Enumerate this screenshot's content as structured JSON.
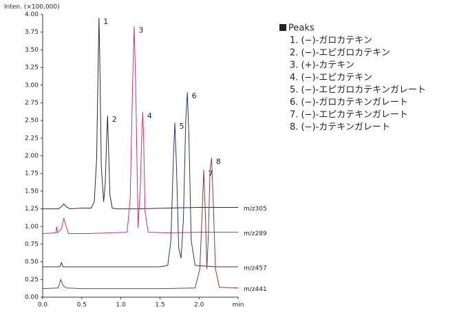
{
  "chart_data": {
    "type": "line",
    "y_label": "Inten. (×100,000)",
    "xlim": [
      0,
      2.5
    ],
    "ylim": [
      0,
      4
    ],
    "xticks": [
      {
        "value": 0,
        "label": "0.0"
      },
      0.5,
      {
        "value": 1,
        "label": "1.0"
      },
      1.5,
      {
        "value": 2,
        "label": "2.0"
      },
      {
        "value": 2.5,
        "label": "min"
      }
    ],
    "yticks": [
      {
        "value": 0,
        "label": "0.00"
      },
      0.25,
      {
        "value": 0.5,
        "label": "0.50"
      },
      0.75,
      {
        "value": 1,
        "label": "1.00"
      },
      1.25,
      {
        "value": 1.5,
        "label": "1.50"
      },
      1.75,
      {
        "value": 2,
        "label": "2.00"
      },
      2.25,
      {
        "value": 2.5,
        "label": "2.50"
      },
      2.75,
      {
        "value": 3,
        "label": "3.00"
      },
      3.25,
      {
        "value": 3.5,
        "label": "3.50"
      },
      3.75,
      {
        "value": 4,
        "label": "4.00"
      }
    ],
    "series": [
      {
        "name": "m/z305",
        "color": "#2b2b2b",
        "peak_labels": [
          "1",
          "2"
        ],
        "x": [
          0,
          0.2,
          0.24,
          0.27,
          0.3,
          0.35,
          0.5,
          0.62,
          0.66,
          0.69,
          0.71,
          0.72,
          0.73,
          0.75,
          0.78,
          0.8,
          0.82,
          0.83,
          0.84,
          0.86,
          0.89,
          0.95,
          1.2,
          1.6,
          2.0,
          2.5
        ],
        "values": [
          1.25,
          1.25,
          1.28,
          1.32,
          1.28,
          1.25,
          1.26,
          1.26,
          1.35,
          1.95,
          3.3,
          3.95,
          3.4,
          1.85,
          1.35,
          1.6,
          2.3,
          2.57,
          2.2,
          1.45,
          1.26,
          1.25,
          1.25,
          1.26,
          1.27,
          1.27
        ]
      },
      {
        "name": "m/z289",
        "color": "#d0307a",
        "peak_labels": [
          "3",
          "4"
        ],
        "x": [
          0,
          0.17,
          0.18,
          0.19,
          0.24,
          0.27,
          0.3,
          0.33,
          0.6,
          1.08,
          1.12,
          1.15,
          1.17,
          1.19,
          1.22,
          1.25,
          1.27,
          1.28,
          1.29,
          1.31,
          1.35,
          1.6,
          2.0,
          2.5
        ],
        "values": [
          0.9,
          0.91,
          1.0,
          0.91,
          0.97,
          1.12,
          1.0,
          0.9,
          0.9,
          0.92,
          1.4,
          3.0,
          3.83,
          3.0,
          0.98,
          1.6,
          2.4,
          2.62,
          2.3,
          1.2,
          0.92,
          0.91,
          0.92,
          0.92
        ]
      },
      {
        "name": "m/z457",
        "color": "#2c3470",
        "peak_labels": [
          "5",
          "6"
        ],
        "x": [
          0,
          0.22,
          0.24,
          0.26,
          0.4,
          1.5,
          1.6,
          1.64,
          1.67,
          1.69,
          1.71,
          1.74,
          1.77,
          1.8,
          1.83,
          1.85,
          1.87,
          1.9,
          1.95,
          2.2,
          2.5
        ],
        "values": [
          0.43,
          0.43,
          0.49,
          0.43,
          0.43,
          0.43,
          0.45,
          0.8,
          1.9,
          2.47,
          1.9,
          0.7,
          0.55,
          1.1,
          2.5,
          2.9,
          2.3,
          0.8,
          0.45,
          0.43,
          0.43
        ]
      },
      {
        "name": "m/z441",
        "color": "#8b3a3a",
        "peak_labels": [
          "7",
          "8"
        ],
        "x": [
          0,
          0.2,
          0.23,
          0.26,
          0.3,
          0.5,
          1.5,
          1.95,
          2.01,
          2.04,
          2.06,
          2.08,
          2.1,
          2.12,
          2.14,
          2.16,
          2.18,
          2.21,
          2.26,
          2.5
        ],
        "values": [
          0.12,
          0.13,
          0.25,
          0.17,
          0.13,
          0.12,
          0.12,
          0.13,
          0.4,
          1.2,
          1.8,
          1.2,
          0.4,
          0.9,
          1.8,
          1.97,
          1.4,
          0.4,
          0.14,
          0.13
        ]
      }
    ],
    "peak_list": {
      "title": "Peaks",
      "items": [
        "1. (−)-ガロカテキン",
        "2. (−)-エピガロカテキン",
        "3. (+)-カテキン",
        "4. (−)-エピカテキン",
        "5. (−)-エピガロカテキンガレート",
        "6. (−)-ガロカテキンガレート",
        "7. (−)-エピカテキンガレート",
        "8. (−)-カテキンガレート"
      ]
    }
  }
}
